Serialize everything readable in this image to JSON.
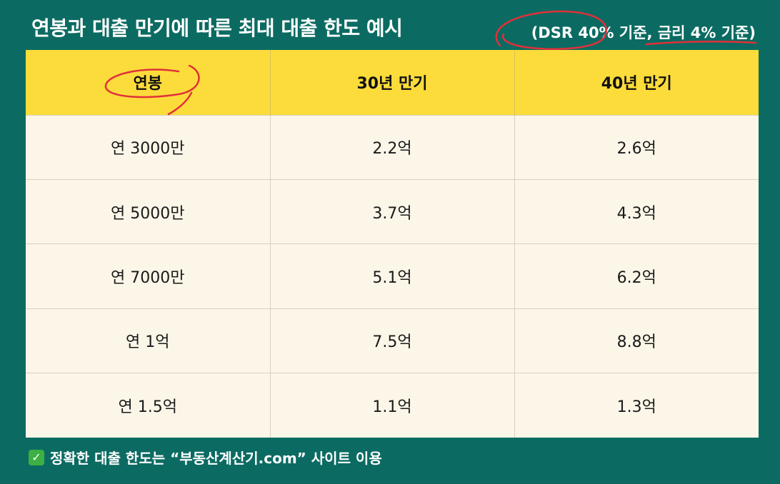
{
  "title": "연봉과 대출 만기에 따른 최대 대출 한도 예시",
  "criteria": "(DSR 40% 기준, 금리 4% 기준)",
  "table": {
    "headers": [
      "연봉",
      "30년 만기",
      "40년 만기"
    ],
    "rows": [
      [
        "연 3000만",
        "2.2억",
        "2.6억"
      ],
      [
        "연 5000만",
        "3.7억",
        "4.3억"
      ],
      [
        "연 7000만",
        "5.1억",
        "6.2억"
      ],
      [
        "연 1억",
        "7.5억",
        "8.8억"
      ],
      [
        "연 1.5억",
        "1.1억",
        "1.3억"
      ]
    ]
  },
  "footnote": {
    "icon": "check-icon",
    "text": "정확한 대출 한도는 “부동산계산기.com” 사이트 이용"
  },
  "colors": {
    "background": "#0b6b62",
    "header_fill": "#fcdc3a",
    "cell_fill": "#fbf6e8",
    "annotation": "#e0303a",
    "check": "#3cb043"
  }
}
